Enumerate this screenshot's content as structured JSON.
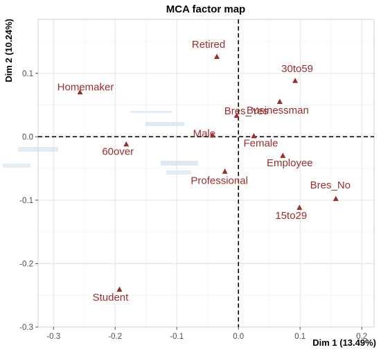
{
  "chart_data": {
    "type": "scatter",
    "title": "MCA factor map",
    "xlabel": "Dim 1 (13.49%)",
    "ylabel": "Dim 2 (10.24%)",
    "xlim": [
      -0.325,
      0.22
    ],
    "ylim": [
      -0.3,
      0.185
    ],
    "x_ticks": [
      -0.3,
      -0.2,
      -0.1,
      0.0,
      0.1,
      0.2
    ],
    "x_tick_labels": [
      "-0.3",
      "-0.2",
      "-0.1",
      "0.0",
      "0.1",
      "0.2"
    ],
    "y_ticks": [
      -0.3,
      -0.2,
      -0.1,
      0.0,
      0.1
    ],
    "y_tick_labels": [
      "-0.3",
      "-0.2",
      "-0.1",
      "0.0",
      "0.1"
    ],
    "grid": true,
    "zero_lines": true,
    "marker": "triangle",
    "point_color": "#9b2d2d",
    "points": [
      {
        "label": "Homemaker",
        "x": -0.257,
        "y": 0.07
      },
      {
        "label": "Retired",
        "x": -0.035,
        "y": 0.126
      },
      {
        "label": "30to59",
        "x": 0.092,
        "y": 0.088
      },
      {
        "label": "Businessman",
        "x": 0.067,
        "y": 0.055
      },
      {
        "label": "Bres_Yes",
        "x": -0.003,
        "y": 0.033
      },
      {
        "label": "Male",
        "x": -0.042,
        "y": 0.002
      },
      {
        "label": "Female",
        "x": 0.025,
        "y": 0.001
      },
      {
        "label": "60over",
        "x": -0.182,
        "y": -0.012
      },
      {
        "label": "Employee",
        "x": 0.072,
        "y": -0.03
      },
      {
        "label": "Professional",
        "x": -0.022,
        "y": -0.055
      },
      {
        "label": "Bres_No",
        "x": 0.158,
        "y": -0.098
      },
      {
        "label": "15to29",
        "x": 0.099,
        "y": -0.112
      },
      {
        "label": "Student",
        "x": -0.193,
        "y": -0.241
      }
    ]
  }
}
